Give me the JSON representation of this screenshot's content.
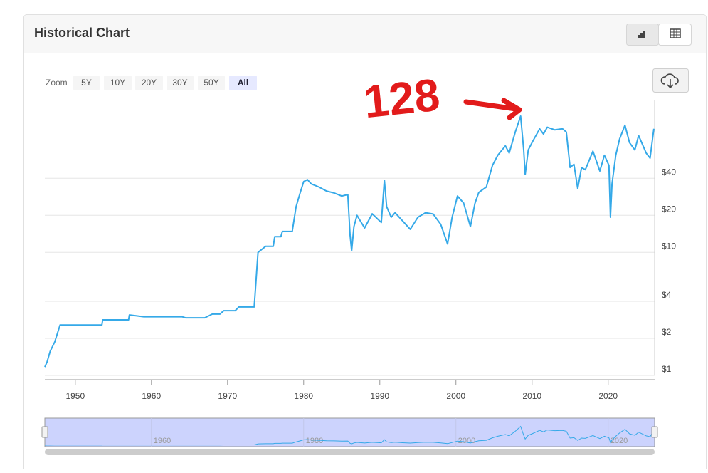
{
  "chart_data": {
    "type": "line",
    "title": "Historical Chart",
    "log_scale": true,
    "grid": true,
    "color": "#35a9e8",
    "zoom_label": "Zoom",
    "zoom_buttons": [
      "5Y",
      "10Y",
      "20Y",
      "30Y",
      "50Y",
      "All"
    ],
    "annotations": [
      "128"
    ],
    "xlim": [
      1946,
      2026.1
    ],
    "xticks": [
      1950,
      1960,
      1970,
      1980,
      1990,
      2000,
      2010,
      2020
    ],
    "navigator_xticks": [
      1960,
      1980,
      2000,
      2020
    ],
    "ylim": [
      1,
      174
    ],
    "yticks": [
      {
        "value": 1,
        "label": "$1"
      },
      {
        "value": 2,
        "label": "$2"
      },
      {
        "value": 4,
        "label": "$4"
      },
      {
        "value": 10,
        "label": "$10"
      },
      {
        "value": 20,
        "label": "$20"
      },
      {
        "value": 40,
        "label": "$40"
      }
    ],
    "x": [
      1946,
      1946.3,
      1946.7,
      1947.3,
      1948,
      1953.5,
      1953.6,
      1957,
      1957.1,
      1959,
      1964,
      1964.5,
      1967,
      1968,
      1969,
      1969.5,
      1971,
      1971.5,
      1973.5,
      1973.6,
      1974,
      1975,
      1976,
      1976.2,
      1977,
      1977.2,
      1978.5,
      1979,
      1979.5,
      1980,
      1980.5,
      1981,
      1982,
      1983,
      1984,
      1985,
      1985.8,
      1986.1,
      1986.3,
      1986.6,
      1987,
      1988,
      1989,
      1990.2,
      1990.6,
      1990.9,
      1991.5,
      1992,
      1993,
      1994,
      1995,
      1996,
      1997,
      1998,
      1998.9,
      1999.5,
      2000.2,
      2001,
      2001.9,
      2002.5,
      2003,
      2004,
      2004.8,
      2005.5,
      2006.5,
      2007,
      2007.8,
      2008.5,
      2008.9,
      2009.1,
      2009.5,
      2010,
      2011,
      2011.5,
      2012,
      2013,
      2014,
      2014.5,
      2015,
      2015.5,
      2016,
      2016.5,
      2017,
      2018,
      2018.9,
      2019.5,
      2020.1,
      2020.3,
      2020.5,
      2021,
      2021.5,
      2022.2,
      2022.8,
      2023.5,
      2024,
      2025,
      2025.5,
      2026
    ],
    "values": [
      1.17,
      1.29,
      1.57,
      1.87,
      2.57,
      2.57,
      2.83,
      2.83,
      3.1,
      3.0,
      3.0,
      2.94,
      2.94,
      3.15,
      3.15,
      3.36,
      3.36,
      3.6,
      3.6,
      4.4,
      10,
      11.2,
      11.2,
      13.4,
      13.4,
      14.8,
      14.8,
      23.5,
      29.9,
      37.6,
      39,
      36,
      34,
      31.5,
      30.4,
      28.7,
      29.5,
      13.8,
      10.3,
      16.2,
      20,
      15.8,
      20.6,
      17.5,
      38.6,
      23.5,
      19.3,
      21,
      18,
      15.4,
      19.3,
      21,
      20.5,
      16.9,
      11.7,
      19.3,
      28.7,
      25.2,
      16.2,
      25,
      30.7,
      34,
      50.9,
      61.6,
      73.3,
      64.2,
      95.3,
      128,
      68,
      42.9,
      68,
      78,
      101,
      91.5,
      104,
      99,
      101,
      95,
      49,
      52,
      33,
      49,
      47,
      66.5,
      45.8,
      61.6,
      50.9,
      19.3,
      36,
      61.6,
      83.6,
      108,
      78,
      68,
      89,
      64,
      58.3,
      101
    ]
  }
}
